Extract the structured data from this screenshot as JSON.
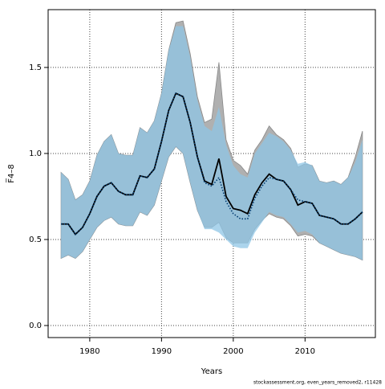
{
  "chart_data": {
    "type": "band-line",
    "xlabel": "Years",
    "ylabel": "F̅4–8",
    "footnote": "stockassessment.org, even_years_removed2, r11428",
    "x": [
      1976,
      1977,
      1978,
      1979,
      1980,
      1981,
      1982,
      1983,
      1984,
      1985,
      1986,
      1987,
      1988,
      1989,
      1990,
      1991,
      1992,
      1993,
      1994,
      1995,
      1996,
      1997,
      1998,
      1999,
      2000,
      2001,
      2002,
      2003,
      2004,
      2005,
      2006,
      2007,
      2008,
      2009,
      2010,
      2011,
      2012,
      2013,
      2014,
      2015,
      2016,
      2017,
      2018
    ],
    "xlim": [
      1974.2,
      2019.8
    ],
    "xticks": [
      1980,
      1990,
      2000,
      2010
    ],
    "ylim": [
      -0.07,
      1.836
    ],
    "yticks": [
      {
        "value": 0,
        "label": "0.0"
      },
      0.5,
      {
        "value": 1,
        "label": "1.0"
      },
      1.5
    ],
    "grid": true,
    "series": [
      {
        "color": "#000000",
        "band_color": "#b0b0b0",
        "line_style": "solid",
        "values": [
          0.59,
          0.59,
          0.53,
          0.57,
          0.65,
          0.75,
          0.81,
          0.83,
          0.78,
          0.76,
          0.76,
          0.87,
          0.86,
          0.91,
          1.07,
          1.25,
          1.35,
          1.33,
          1.18,
          0.98,
          0.84,
          0.82,
          0.97,
          0.75,
          0.68,
          0.67,
          0.65,
          0.76,
          0.83,
          0.88,
          0.85,
          0.84,
          0.79,
          0.7,
          0.72,
          0.71,
          0.64,
          0.63,
          0.62,
          0.59,
          0.59,
          0.62,
          0.66
        ],
        "upper": [
          0.89,
          0.85,
          0.73,
          0.76,
          0.84,
          0.99,
          1.07,
          1.11,
          1.0,
          0.99,
          0.99,
          1.15,
          1.12,
          1.19,
          1.35,
          1.6,
          1.76,
          1.77,
          1.58,
          1.33,
          1.18,
          1.2,
          1.53,
          1.08,
          0.96,
          0.93,
          0.88,
          1.02,
          1.08,
          1.16,
          1.11,
          1.08,
          1.03,
          0.92,
          0.94,
          0.93,
          0.84,
          0.83,
          0.84,
          0.82,
          0.86,
          0.98,
          1.13
        ],
        "lower": [
          0.39,
          0.41,
          0.39,
          0.43,
          0.5,
          0.57,
          0.61,
          0.63,
          0.59,
          0.58,
          0.58,
          0.66,
          0.64,
          0.7,
          0.84,
          0.98,
          1.04,
          1.0,
          0.83,
          0.67,
          0.57,
          0.57,
          0.6,
          0.51,
          0.48,
          0.48,
          0.48,
          0.56,
          0.61,
          0.65,
          0.63,
          0.62,
          0.58,
          0.52,
          0.53,
          0.52,
          0.48,
          0.46,
          0.44,
          0.42,
          0.41,
          0.4,
          0.38
        ]
      },
      {
        "color": "#003a70",
        "band_color": "#8fc6e6",
        "line_style": "dotted",
        "values": [
          0.59,
          0.59,
          0.53,
          0.57,
          0.65,
          0.75,
          0.81,
          0.83,
          0.78,
          0.76,
          0.76,
          0.87,
          0.86,
          0.91,
          1.07,
          1.25,
          1.35,
          1.33,
          1.18,
          0.98,
          0.83,
          0.81,
          0.86,
          0.72,
          0.65,
          0.62,
          0.62,
          0.74,
          0.81,
          0.86,
          0.85,
          0.84,
          0.79,
          0.73,
          0.72,
          0.71,
          0.64,
          0.63,
          0.62,
          0.59,
          0.59,
          0.62,
          0.66
        ],
        "upper": [
          0.89,
          0.85,
          0.73,
          0.76,
          0.84,
          0.99,
          1.07,
          1.11,
          1.0,
          0.99,
          0.99,
          1.15,
          1.12,
          1.19,
          1.35,
          1.6,
          1.74,
          1.74,
          1.56,
          1.31,
          1.16,
          1.13,
          1.27,
          1.05,
          0.93,
          0.88,
          0.86,
          1.0,
          1.06,
          1.12,
          1.1,
          1.07,
          1.02,
          0.94,
          0.95,
          0.93,
          0.84,
          0.83,
          0.84,
          0.82,
          0.86,
          0.95,
          1.08
        ],
        "lower": [
          0.39,
          0.41,
          0.39,
          0.43,
          0.5,
          0.57,
          0.61,
          0.63,
          0.59,
          0.58,
          0.58,
          0.66,
          0.64,
          0.7,
          0.84,
          0.98,
          1.04,
          1.0,
          0.83,
          0.67,
          0.56,
          0.56,
          0.54,
          0.5,
          0.46,
          0.45,
          0.45,
          0.54,
          0.6,
          0.66,
          0.64,
          0.63,
          0.59,
          0.54,
          0.55,
          0.53,
          0.48,
          0.46,
          0.44,
          0.42,
          0.41,
          0.4,
          0.38
        ]
      }
    ]
  }
}
